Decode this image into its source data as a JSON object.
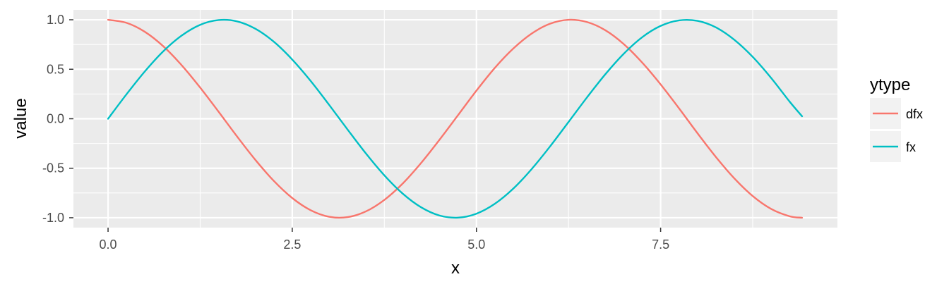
{
  "chart_data": {
    "type": "line",
    "xlabel": "x",
    "ylabel": "value",
    "xlim": [
      -0.47,
      9.9
    ],
    "ylim": [
      -1.1,
      1.1
    ],
    "x_ticks": [
      0.0,
      2.5,
      5.0,
      7.5
    ],
    "x_tick_labels": [
      "0.0",
      "2.5",
      "5.0",
      "7.5"
    ],
    "y_ticks": [
      1.0,
      0.5,
      0.0,
      -0.5,
      -1.0
    ],
    "y_tick_labels": [
      "1.0",
      "0.5",
      "0.0",
      "-0.5",
      "-1.0"
    ],
    "grid": true,
    "legend": {
      "title": "ytype",
      "position": "right"
    },
    "x": [
      0.0,
      0.25,
      0.5,
      0.75,
      1.0,
      1.25,
      1.5,
      1.75,
      2.0,
      2.25,
      2.5,
      2.75,
      3.0,
      3.25,
      3.5,
      3.75,
      4.0,
      4.25,
      4.5,
      4.75,
      5.0,
      5.25,
      5.5,
      5.75,
      6.0,
      6.25,
      6.5,
      6.75,
      7.0,
      7.25,
      7.5,
      7.75,
      8.0,
      8.25,
      8.5,
      8.75,
      9.0,
      9.25,
      9.42
    ],
    "series": [
      {
        "name": "dfx",
        "color": "#F8766D",
        "values": [
          1.0,
          0.969,
          0.878,
          0.732,
          0.54,
          0.315,
          0.071,
          -0.178,
          -0.416,
          -0.628,
          -0.801,
          -0.924,
          -0.99,
          -0.994,
          -0.936,
          -0.82,
          -0.654,
          -0.446,
          -0.211,
          0.036,
          0.284,
          0.514,
          0.709,
          0.861,
          0.96,
          1.0,
          0.977,
          0.894,
          0.754,
          0.567,
          0.347,
          0.105,
          -0.146,
          -0.386,
          -0.602,
          -0.781,
          -0.911,
          -0.985,
          -1.0
        ]
      },
      {
        "name": "fx",
        "color": "#00BFC4",
        "values": [
          0.0,
          0.247,
          0.479,
          0.682,
          0.841,
          0.949,
          0.997,
          0.984,
          0.909,
          0.778,
          0.598,
          0.382,
          0.141,
          -0.108,
          -0.351,
          -0.572,
          -0.757,
          -0.895,
          -0.978,
          -0.999,
          -0.959,
          -0.859,
          -0.706,
          -0.508,
          -0.279,
          -0.033,
          0.215,
          0.45,
          0.657,
          0.824,
          0.938,
          0.994,
          0.989,
          0.923,
          0.798,
          0.625,
          0.412,
          0.174,
          0.025
        ]
      }
    ]
  }
}
